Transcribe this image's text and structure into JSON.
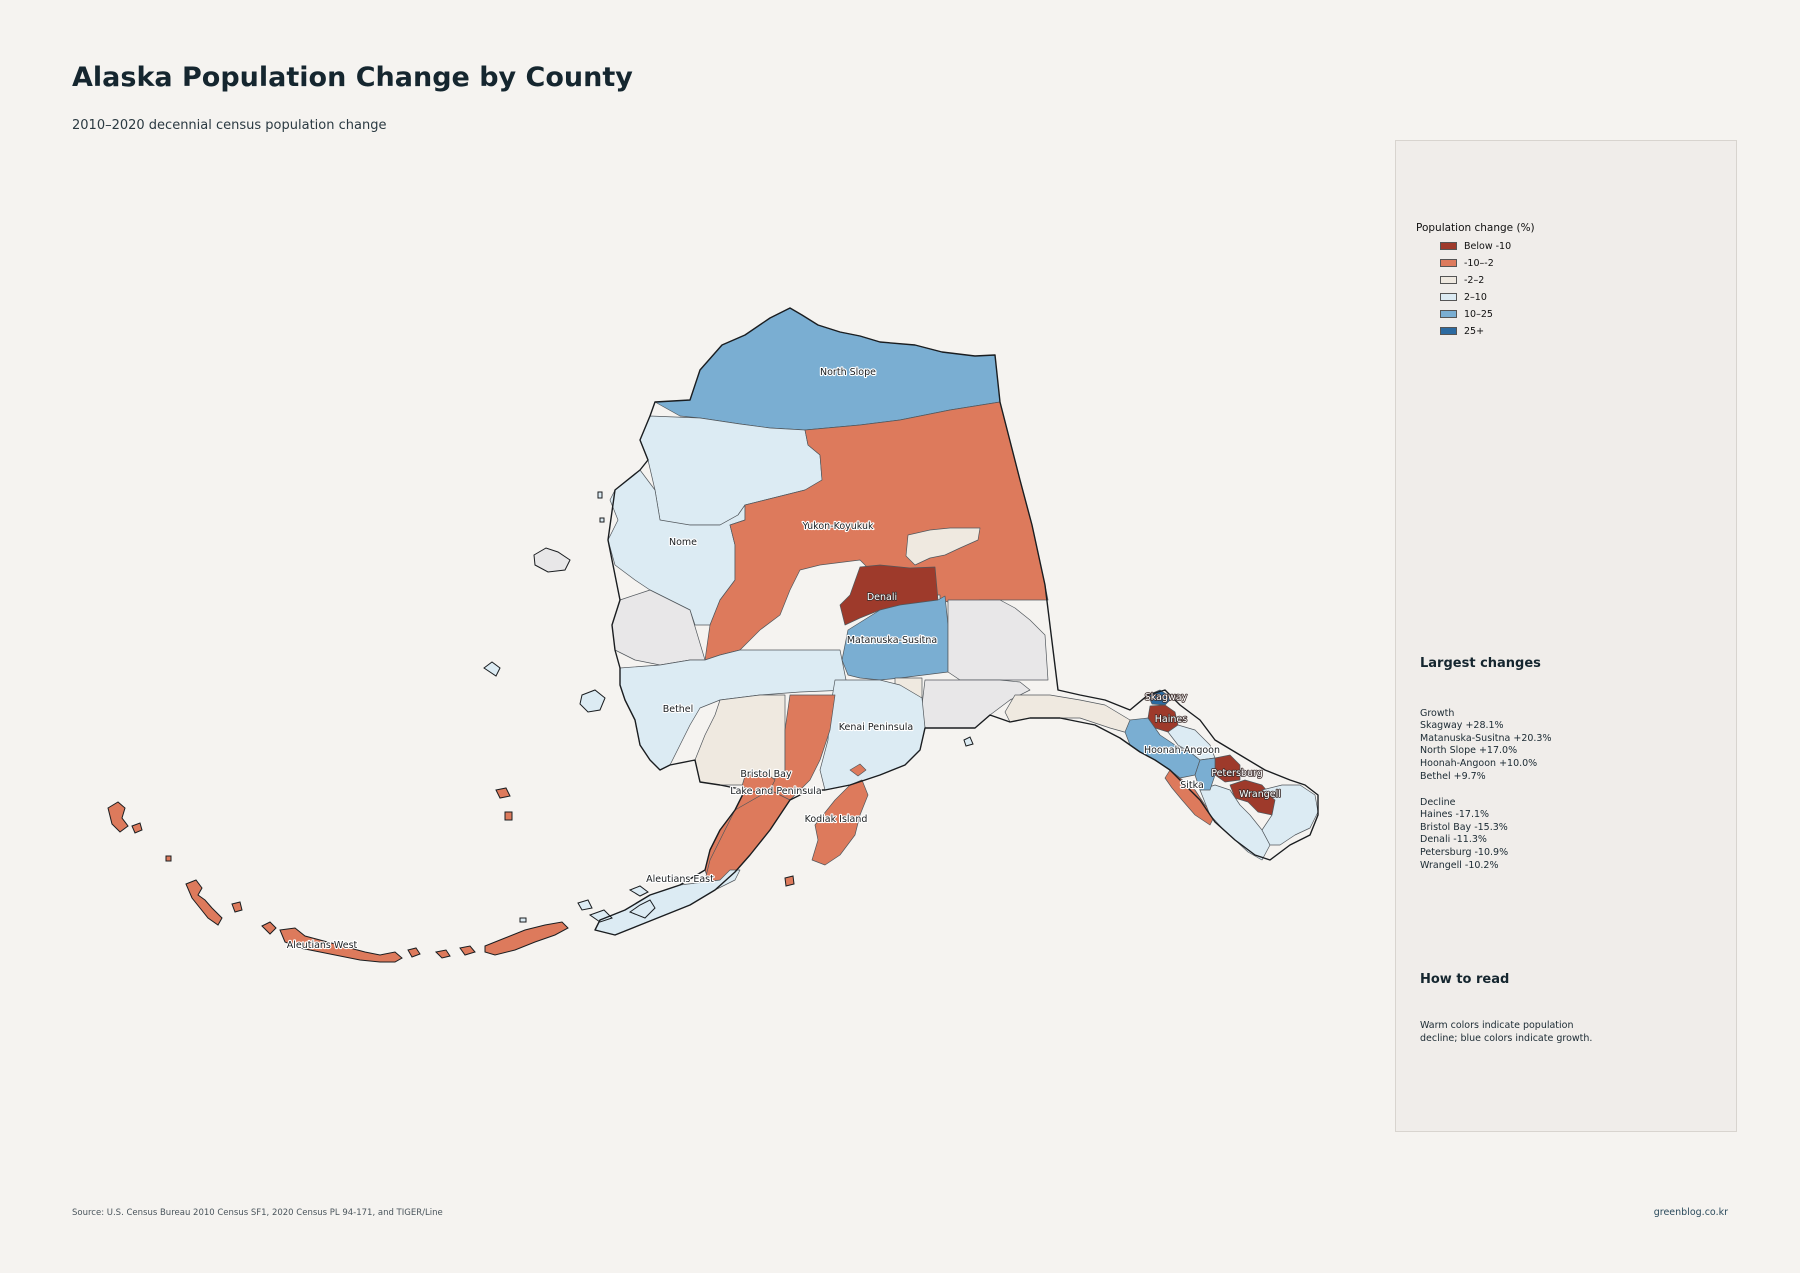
{
  "title": "Alaska Population Change by County",
  "subtitle": "2010–2020 decennial census population change",
  "legend": {
    "title": "Population change (%)",
    "items": [
      {
        "label": "Below -10",
        "color": "#9e3a2b"
      },
      {
        "label": "-10–-2",
        "color": "#dd7a5c"
      },
      {
        "label": "-2–2",
        "color": "#efe9e0"
      },
      {
        "label": "2–10",
        "color": "#dcebf3"
      },
      {
        "label": "10–25",
        "color": "#7aaed2"
      },
      {
        "label": "25+",
        "color": "#2c6aa0"
      }
    ]
  },
  "largest_changes": {
    "heading": "Largest changes",
    "growth_heading": "Growth",
    "growth": [
      {
        "name": "Skagway",
        "value": "+28.1%"
      },
      {
        "name": "Matanuska-Susitna",
        "value": "+20.3%"
      },
      {
        "name": "North Slope",
        "value": "+17.0%"
      },
      {
        "name": "Hoonah-Angoon",
        "value": "+10.0%"
      },
      {
        "name": "Bethel",
        "value": "+9.7%"
      }
    ],
    "decline_heading": "Decline",
    "decline": [
      {
        "name": "Haines",
        "value": "-17.1%"
      },
      {
        "name": "Bristol Bay",
        "value": "-15.3%"
      },
      {
        "name": "Denali",
        "value": "-11.3%"
      },
      {
        "name": "Petersburg",
        "value": "-10.9%"
      },
      {
        "name": "Wrangell",
        "value": "-10.2%"
      }
    ]
  },
  "how_to_read": {
    "heading": "How to read",
    "text": "Warm colors indicate population decline; blue colors indicate growth."
  },
  "source": "Source: U.S. Census Bureau 2010 Census SF1, 2020 Census PL 94-171, and TIGER/Line",
  "credit": "greenblog.co.kr",
  "map_labels": {
    "north_slope": "North Slope",
    "yukon_koyukuk": "Yukon-Koyukuk",
    "nome": "Nome",
    "denali": "Denali",
    "matanuska_susitna": "Matanuska-Susitna",
    "bethel": "Bethel",
    "kenai_peninsula": "Kenai Peninsula",
    "bristol_bay": "Bristol Bay",
    "lake_and_peninsula": "Lake and Peninsula",
    "kodiak_island": "Kodiak Island",
    "aleutians_east": "Aleutians East",
    "aleutians_west": "Aleutians West",
    "skagway": "Skagway",
    "haines": "Haines",
    "hoonah_angoon": "Hoonah-Angoon",
    "petersburg": "Petersburg",
    "sitka": "Sitka",
    "wrangell": "Wrangell"
  },
  "colors": {
    "background": "#f5f3f0",
    "panel": "#f0edea"
  }
}
